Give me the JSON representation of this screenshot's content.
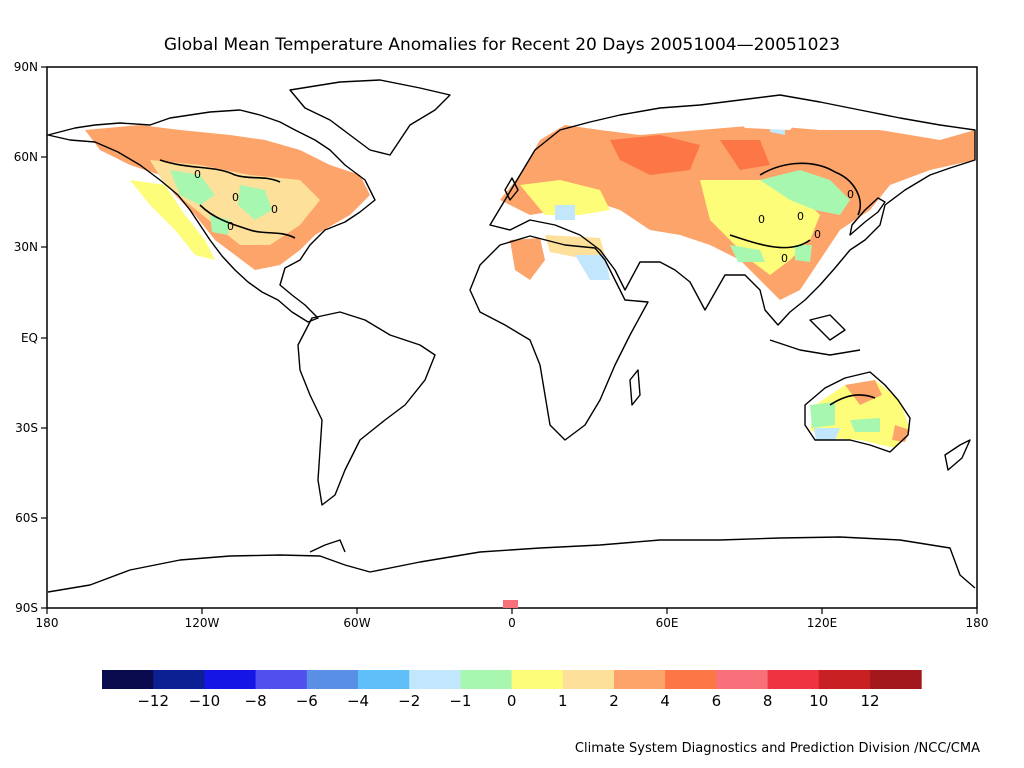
{
  "title": "Global Mean Temperature Anomalies for Recent 20 Days  20051004—20051023",
  "credit": "Climate System Diagnostics and Prediction Division /NCC/CMA",
  "lat_labels": [
    "90N",
    "60N",
    "30N",
    "EQ",
    "30S",
    "60S",
    "90S"
  ],
  "lon_labels": [
    "180",
    "120W",
    "60W",
    "0",
    "60E",
    "120E",
    "180"
  ],
  "contour_labels": [
    "0",
    "0",
    "0",
    "0",
    "0",
    "0",
    "0",
    "0",
    "0"
  ],
  "legend": {
    "colors": [
      "#0a0a4f",
      "#0c1f93",
      "#1515e6",
      "#5050ee",
      "#5a8fe6",
      "#5fbff8",
      "#c2e6fb",
      "#a8f7b0",
      "#fdfd7a",
      "#fde09a",
      "#fda46b",
      "#fc7646",
      "#f8717a",
      "#ee3341",
      "#c82023",
      "#a3181c"
    ],
    "labels": [
      "−12",
      "−10",
      "−8",
      "−6",
      "−4",
      "−2",
      "−1",
      "0",
      "1",
      "2",
      "4",
      "6",
      "8",
      "10",
      "12"
    ]
  }
}
